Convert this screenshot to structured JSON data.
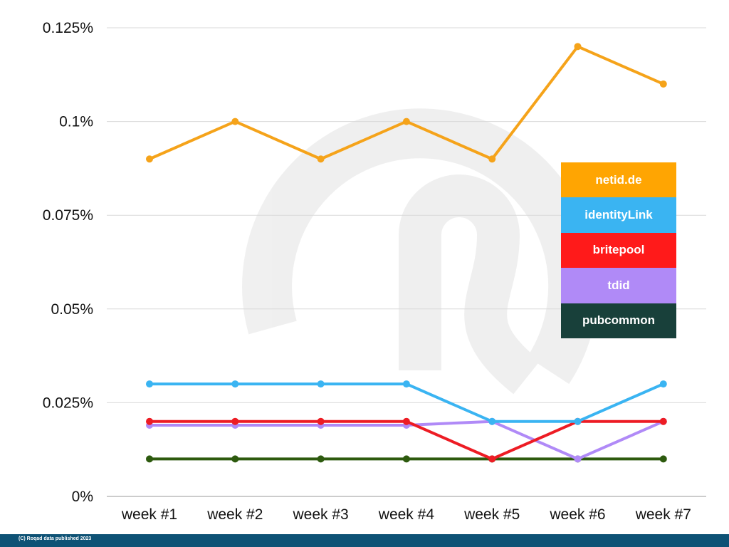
{
  "chart_data": {
    "type": "line",
    "categories": [
      "week #1",
      "week #2",
      "week #3",
      "week #4",
      "week #5",
      "week #6",
      "week #7"
    ],
    "y_ticks": [
      "0%",
      "0.025%",
      "0.05%",
      "0.075%",
      "0.1%",
      "0.125%"
    ],
    "ylim": [
      0,
      0.125
    ],
    "y_unit": "%",
    "grid": "horizontal",
    "legend_position": "right",
    "series": [
      {
        "name": "netid.de",
        "color": "#f5a31a",
        "values": [
          0.09,
          0.1,
          0.09,
          0.1,
          0.09,
          0.12,
          0.11
        ]
      },
      {
        "name": "identityLink",
        "color": "#3ab4f2",
        "values": [
          0.03,
          0.03,
          0.03,
          0.03,
          0.02,
          0.02,
          0.03
        ]
      },
      {
        "name": "britepool",
        "color": "#ed1c24",
        "values": [
          0.02,
          0.02,
          0.02,
          0.02,
          0.01,
          0.02,
          0.02
        ]
      },
      {
        "name": "tdid",
        "color": "#b08af7",
        "values": [
          0.019,
          0.019,
          0.019,
          0.019,
          0.02,
          0.01,
          0.02
        ]
      },
      {
        "name": "pubcommon",
        "color": "#2d5a0e",
        "values": [
          0.01,
          0.01,
          0.01,
          0.01,
          0.01,
          0.01,
          0.01
        ]
      }
    ],
    "legend": [
      {
        "name": "netid.de",
        "bg": "#ffa502"
      },
      {
        "name": "identityLink",
        "bg": "#3ab4f2"
      },
      {
        "name": "britepool",
        "bg": "#ff1a1a"
      },
      {
        "name": "tdid",
        "bg": "#b08af7"
      },
      {
        "name": "pubcommon",
        "bg": "#18403a"
      }
    ]
  },
  "footer": {
    "text": "(C) Roqad data published  2023"
  }
}
